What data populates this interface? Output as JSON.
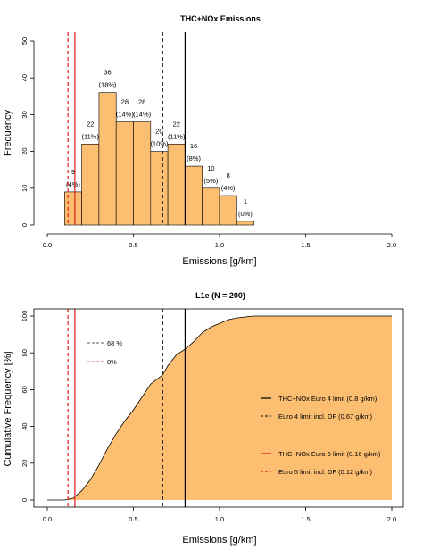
{
  "chart_data": [
    {
      "type": "bar",
      "title": "THC+NOx Emissions",
      "xlabel": "Emissions [g/km]",
      "ylabel": "Frequency",
      "xlim": [
        0,
        2.0
      ],
      "ylim": [
        0,
        50
      ],
      "xticks": [
        "0.0",
        "0.5",
        "1.0",
        "1.5",
        "2.0"
      ],
      "yticks": [
        "0",
        "10",
        "20",
        "30",
        "40",
        "50"
      ],
      "bins": [
        {
          "start": 0.1,
          "end": 0.2,
          "count": 9,
          "label": "9",
          "pct": "(4%)"
        },
        {
          "start": 0.2,
          "end": 0.3,
          "count": 22,
          "label": "22",
          "pct": "(11%)"
        },
        {
          "start": 0.3,
          "end": 0.4,
          "count": 36,
          "label": "36",
          "pct": "(18%)"
        },
        {
          "start": 0.4,
          "end": 0.5,
          "count": 28,
          "label": "28",
          "pct": "(14%)"
        },
        {
          "start": 0.5,
          "end": 0.6,
          "count": 28,
          "label": "28",
          "pct": "(14%)"
        },
        {
          "start": 0.6,
          "end": 0.7,
          "count": 20,
          "label": "20",
          "pct": "(10%)"
        },
        {
          "start": 0.7,
          "end": 0.8,
          "count": 22,
          "label": "22",
          "pct": "(11%)"
        },
        {
          "start": 0.8,
          "end": 0.9,
          "count": 16,
          "label": "16",
          "pct": "(8%)"
        },
        {
          "start": 0.9,
          "end": 1.0,
          "count": 10,
          "label": "10",
          "pct": "(5%)"
        },
        {
          "start": 1.0,
          "end": 1.1,
          "count": 8,
          "label": "8",
          "pct": "(4%)"
        },
        {
          "start": 1.1,
          "end": 1.2,
          "count": 1,
          "label": "1",
          "pct": "(0%)"
        }
      ],
      "vlines": [
        {
          "x": 0.12,
          "color": "#e41a1c",
          "dash": true
        },
        {
          "x": 0.16,
          "color": "#e41a1c",
          "dash": false
        },
        {
          "x": 0.67,
          "color": "#222222",
          "dash": true
        },
        {
          "x": 0.8,
          "color": "#000000",
          "dash": false
        }
      ],
      "bar_color": "#fcbf72"
    },
    {
      "type": "area",
      "title": "L1e (N = 200)",
      "xlabel": "Emissions [g/km]",
      "ylabel": "Cumulative Frequency [%]",
      "xlim": [
        0,
        2.0
      ],
      "ylim": [
        0,
        100
      ],
      "xticks": [
        "0.0",
        "0.5",
        "1.0",
        "1.5",
        "2.0"
      ],
      "yticks": [
        "0",
        "20",
        "40",
        "60",
        "80",
        "100"
      ],
      "x": [
        0.0,
        0.1,
        0.15,
        0.2,
        0.25,
        0.3,
        0.35,
        0.4,
        0.45,
        0.5,
        0.55,
        0.6,
        0.67,
        0.7,
        0.75,
        0.8,
        0.85,
        0.9,
        0.95,
        1.0,
        1.05,
        1.1,
        1.15,
        1.2,
        2.0
      ],
      "y": [
        0,
        0,
        1,
        5,
        11,
        19,
        28,
        36,
        43,
        49,
        56,
        63,
        68,
        73,
        79,
        82,
        86,
        91,
        94,
        96,
        98,
        99,
        99.5,
        100,
        100
      ],
      "fill_color": "#fcbf72",
      "vlines": [
        {
          "x": 0.12,
          "color": "#e41a1c",
          "dash": true
        },
        {
          "x": 0.16,
          "color": "#e41a1c",
          "dash": false
        },
        {
          "x": 0.67,
          "color": "#222222",
          "dash": true
        },
        {
          "x": 0.8,
          "color": "#000000",
          "dash": false
        }
      ],
      "annotations": [
        {
          "text": "68 %",
          "color": "#222222"
        },
        {
          "text": "0%",
          "color": "#e41a1c"
        }
      ],
      "legend": [
        {
          "label": "THC+NOx Euro 4 limit (0.8 g/km)",
          "color": "#000000",
          "dash": false
        },
        {
          "label": "Euro 4 limit incl. DF (0.67 g/km)",
          "color": "#222222",
          "dash": true
        },
        {
          "label": "THC+NOx Euro 5 limit (0.16 g/km)",
          "color": "#e41a1c",
          "dash": false
        },
        {
          "label": "Euro 5 limit incl. DF (0.12 g/km)",
          "color": "#e41a1c",
          "dash": true
        }
      ],
      "legend_position": "right"
    }
  ]
}
